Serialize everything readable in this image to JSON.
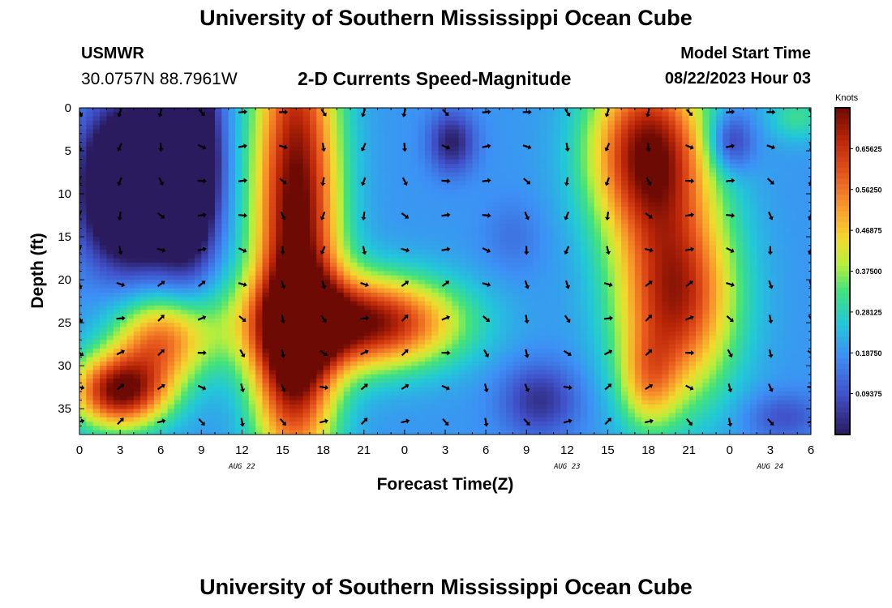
{
  "header": {
    "title": "University of Southern Mississippi Ocean Cube",
    "station": "USMWR",
    "coordinates": "30.0757N  88.7961W",
    "subtitle": "2-D Currents Speed-Magnitude",
    "model_start_label": "Model Start Time",
    "model_start_value": "08/22/2023 Hour 03"
  },
  "footer": {
    "title": "University of Southern Mississippi Ocean Cube"
  },
  "chart_data": {
    "type": "heatmap",
    "title": "2-D Currents Speed-Magnitude",
    "xlabel": "Forecast Time(Z)",
    "ylabel": "Depth (ft)",
    "x_range": [
      0,
      54
    ],
    "y_range": [
      0,
      38
    ],
    "x_ticks": [
      {
        "value": 0,
        "label": "0"
      },
      {
        "value": 3,
        "label": "3"
      },
      {
        "value": 6,
        "label": "6"
      },
      {
        "value": 9,
        "label": "9"
      },
      {
        "value": 12,
        "label": "12"
      },
      {
        "value": 15,
        "label": "15"
      },
      {
        "value": 18,
        "label": "18"
      },
      {
        "value": 21,
        "label": "21"
      },
      {
        "value": 24,
        "label": "0"
      },
      {
        "value": 27,
        "label": "3"
      },
      {
        "value": 30,
        "label": "6"
      },
      {
        "value": 33,
        "label": "9"
      },
      {
        "value": 36,
        "label": "12"
      },
      {
        "value": 39,
        "label": "15"
      },
      {
        "value": 42,
        "label": "18"
      },
      {
        "value": 45,
        "label": "21"
      },
      {
        "value": 48,
        "label": "0"
      },
      {
        "value": 51,
        "label": "3"
      },
      {
        "value": 54,
        "label": "6"
      }
    ],
    "y_ticks": [
      {
        "value": 0,
        "label": "0"
      },
      {
        "value": 5,
        "label": "5"
      },
      {
        "value": 10,
        "label": "10"
      },
      {
        "value": 15,
        "label": "15"
      },
      {
        "value": 20,
        "label": "20"
      },
      {
        "value": 25,
        "label": "25"
      },
      {
        "value": 30,
        "label": "30"
      },
      {
        "value": 35,
        "label": "35"
      }
    ],
    "date_labels": [
      {
        "value": 12,
        "label": "AUG 22"
      },
      {
        "value": 36,
        "label": "AUG 23"
      },
      {
        "value": 51,
        "label": "AUG 24"
      }
    ],
    "colorbar": {
      "title": "Knots",
      "range": [
        0.0,
        0.75
      ],
      "ticks": [
        {
          "value": 0.65625,
          "label": "0.65625"
        },
        {
          "value": 0.5625,
          "label": "0.56250"
        },
        {
          "value": 0.46875,
          "label": "0.46875"
        },
        {
          "value": 0.375,
          "label": "0.37500"
        },
        {
          "value": 0.28125,
          "label": "0.28125"
        },
        {
          "value": 0.1875,
          "label": "0.18750"
        },
        {
          "value": 0.09375,
          "label": "0.09375"
        }
      ]
    },
    "speed_features": [
      {
        "t": 4,
        "d": 9,
        "speed": -0.55,
        "st": 2.5,
        "sd": 6
      },
      {
        "t": 8,
        "d": 6,
        "speed": -0.45,
        "st": 1.5,
        "sd": 8
      },
      {
        "t": 3,
        "d": 33,
        "speed": 0.55,
        "st": 2.5,
        "sd": 3
      },
      {
        "t": 6,
        "d": 27,
        "speed": 0.35,
        "st": 2.5,
        "sd": 3.5
      },
      {
        "t": 16,
        "d": 14,
        "speed": 0.6,
        "st": 2.2,
        "sd": 20
      },
      {
        "t": 18,
        "d": 25,
        "speed": 0.35,
        "st": 5,
        "sd": 4
      },
      {
        "t": 23,
        "d": 25,
        "speed": 0.3,
        "st": 4,
        "sd": 3.5
      },
      {
        "t": 15.5,
        "d": 32,
        "speed": 0.15,
        "st": 2,
        "sd": 5
      },
      {
        "t": 27.5,
        "d": 4,
        "speed": -0.18,
        "st": 1.2,
        "sd": 2.5
      },
      {
        "t": 34,
        "d": 34,
        "speed": -0.15,
        "st": 2,
        "sd": 3
      },
      {
        "t": 42,
        "d": 5,
        "speed": 0.55,
        "st": 3,
        "sd": 7
      },
      {
        "t": 44,
        "d": 22,
        "speed": 0.5,
        "st": 3,
        "sd": 8
      },
      {
        "t": 42,
        "d": 32,
        "speed": 0.2,
        "st": 1.5,
        "sd": 4
      },
      {
        "t": 48,
        "d": 4,
        "speed": -0.18,
        "st": 1.2,
        "sd": 2.5
      },
      {
        "t": 53,
        "d": 1,
        "speed": 0.12,
        "st": 1.5,
        "sd": 2
      },
      {
        "t": 52,
        "d": 36,
        "speed": -0.1,
        "st": 2,
        "sd": 2
      },
      {
        "t": 32,
        "d": 15,
        "speed": -0.05,
        "st": 1.5,
        "sd": 3
      }
    ],
    "vector_columns": {
      "t_start": 0,
      "t_step": 3,
      "count": 19
    },
    "vector_rows": {
      "d_start": 0.5,
      "d_step": 4,
      "count": 10
    }
  }
}
